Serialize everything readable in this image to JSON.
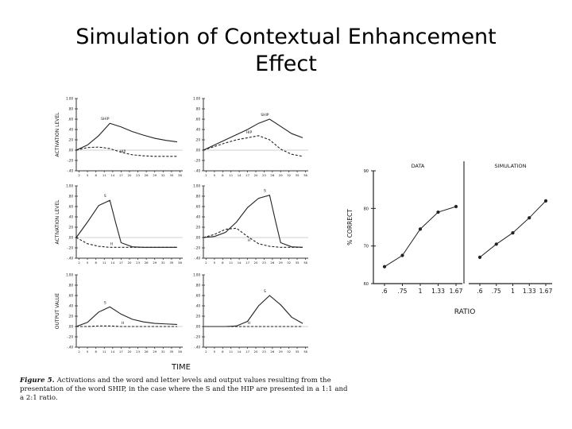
{
  "slide": {
    "title_line1": "Simulation of Contextual Enhancement",
    "title_line2": "Effect"
  },
  "figure": {
    "caption_label": "Figure 5.",
    "caption_text": "Activations and the word and letter levels and output values resulting from the presentation of the word SHIP, in the case where the S and the HIP are presented in a 1:1 and a 2:1 ratio."
  },
  "chart_data": [
    {
      "type": "line",
      "panel": "row1-left",
      "ylabel": "ACTIVATION LEVEL",
      "xlabel": "",
      "ylim": [
        -0.4,
        1.0
      ],
      "y_ticks": [
        "1.00",
        ".80",
        ".60",
        ".40",
        ".20",
        ".00",
        "-.20",
        "-.40"
      ],
      "x_ticks": [
        "2",
        "5",
        "8",
        "11",
        "14",
        "17",
        "20",
        "23",
        "26",
        "29",
        "32",
        "35",
        "38"
      ],
      "x": [
        1,
        5,
        9,
        13,
        17,
        21,
        25,
        29,
        33,
        37
      ],
      "series": [
        {
          "name": "SHIP",
          "values": [
            0.0,
            0.1,
            0.28,
            0.52,
            0.45,
            0.36,
            0.29,
            0.23,
            0.19,
            0.16
          ]
        },
        {
          "name": "HIP",
          "values": [
            0.0,
            0.05,
            0.06,
            0.03,
            -0.04,
            -0.09,
            -0.11,
            -0.12,
            -0.12,
            -0.12
          ]
        }
      ]
    },
    {
      "type": "line",
      "panel": "row1-right",
      "ylabel": "",
      "xlabel": "",
      "ylim": [
        -0.4,
        1.0
      ],
      "y_ticks": [
        "1.00",
        ".80",
        ".60",
        ".40",
        ".20",
        ".00",
        "-.20",
        "-.40"
      ],
      "x_ticks": [
        "2",
        "5",
        "8",
        "11",
        "14",
        "17",
        "20",
        "23",
        "26",
        "29",
        "32",
        "35",
        "38"
      ],
      "x": [
        1,
        5,
        9,
        13,
        17,
        21,
        25,
        29,
        33,
        37
      ],
      "series": [
        {
          "name": "SHIP",
          "values": [
            0.0,
            0.1,
            0.2,
            0.3,
            0.4,
            0.52,
            0.6,
            0.46,
            0.32,
            0.24
          ]
        },
        {
          "name": "HIP",
          "values": [
            0.0,
            0.07,
            0.14,
            0.2,
            0.24,
            0.28,
            0.2,
            0.02,
            -0.08,
            -0.12
          ]
        }
      ]
    },
    {
      "type": "line",
      "panel": "row2-left",
      "ylabel": "ACTIVATION LEVEL",
      "xlabel": "",
      "ylim": [
        -0.4,
        1.0
      ],
      "y_ticks": [
        "1.00",
        ".80",
        ".60",
        ".40",
        ".20",
        ".00",
        "-.20",
        "-.40"
      ],
      "x_ticks": [
        "2",
        "5",
        "8",
        "11",
        "14",
        "17",
        "20",
        "23",
        "26",
        "29",
        "32",
        "35",
        "38"
      ],
      "x": [
        1,
        5,
        9,
        13,
        15,
        17,
        21,
        25,
        29,
        37
      ],
      "series": [
        {
          "name": "S",
          "values": [
            0.0,
            0.3,
            0.62,
            0.72,
            0.3,
            -0.1,
            -0.18,
            -0.19,
            -0.19,
            -0.19
          ]
        },
        {
          "name": "H",
          "values": [
            0.0,
            -0.12,
            -0.17,
            -0.19,
            -0.19,
            -0.19,
            -0.19,
            -0.19,
            -0.19,
            -0.19
          ]
        }
      ]
    },
    {
      "type": "line",
      "panel": "row2-right",
      "ylabel": "",
      "xlabel": "",
      "ylim": [
        -0.4,
        1.0
      ],
      "y_ticks": [
        "1.00",
        ".80",
        ".60",
        ".40",
        ".20",
        ".00",
        "-.20",
        "-.40"
      ],
      "x_ticks": [
        "2",
        "5",
        "8",
        "11",
        "14",
        "17",
        "20",
        "23",
        "26",
        "29",
        "32",
        "35",
        "38"
      ],
      "x": [
        1,
        5,
        9,
        13,
        17,
        21,
        25,
        27,
        29,
        33,
        37
      ],
      "series": [
        {
          "name": "S",
          "values": [
            0.0,
            0.02,
            0.1,
            0.3,
            0.58,
            0.76,
            0.82,
            0.35,
            -0.1,
            -0.18,
            -0.19
          ]
        },
        {
          "name": "H",
          "values": [
            0.0,
            0.06,
            0.16,
            0.18,
            0.02,
            -0.12,
            -0.17,
            -0.18,
            -0.19,
            -0.19,
            -0.19
          ]
        }
      ]
    },
    {
      "type": "line",
      "panel": "row3-left",
      "ylabel": "OUTPUT VALUE",
      "xlabel": "TIME",
      "ylim": [
        -0.4,
        1.0
      ],
      "y_ticks": [
        "1.00",
        ".80",
        ".60",
        ".40",
        ".20",
        ".00",
        "-.20",
        "-.40"
      ],
      "x_ticks": [
        "2",
        "5",
        "8",
        "11",
        "14",
        "17",
        "20",
        "23",
        "26",
        "29",
        "32",
        "35",
        "38"
      ],
      "x": [
        1,
        5,
        9,
        13,
        17,
        21,
        25,
        29,
        33,
        37
      ],
      "series": [
        {
          "name": "S",
          "values": [
            0.0,
            0.08,
            0.28,
            0.38,
            0.24,
            0.14,
            0.09,
            0.06,
            0.05,
            0.04
          ]
        },
        {
          "name": "H",
          "values": [
            0.0,
            0.0,
            0.01,
            0.01,
            0.0,
            0.0,
            0.0,
            0.0,
            0.0,
            0.0
          ]
        }
      ]
    },
    {
      "type": "line",
      "panel": "row3-right",
      "ylabel": "",
      "xlabel": "TIME",
      "ylim": [
        -0.4,
        1.0
      ],
      "y_ticks": [
        "1.00",
        ".80",
        ".60",
        ".40",
        ".20",
        ".00",
        "-.20",
        "-.40"
      ],
      "x_ticks": [
        "2",
        "5",
        "8",
        "11",
        "14",
        "17",
        "20",
        "23",
        "26",
        "29",
        "32",
        "35",
        "38"
      ],
      "x": [
        1,
        5,
        9,
        13,
        17,
        21,
        25,
        29,
        33,
        37
      ],
      "series": [
        {
          "name": "S",
          "values": [
            0.0,
            0.0,
            0.0,
            0.01,
            0.1,
            0.4,
            0.6,
            0.42,
            0.18,
            0.06
          ]
        },
        {
          "name": "H",
          "values": [
            0.0,
            0.0,
            0.0,
            0.0,
            0.0,
            0.0,
            0.0,
            0.0,
            0.0,
            0.0
          ]
        }
      ]
    },
    {
      "type": "line",
      "panel": "data",
      "title": "DATA",
      "ylabel": "% CORRECT",
      "xlabel": "RATIO",
      "ylim": [
        60,
        90
      ],
      "y_ticks": [
        "90",
        "80",
        "70",
        "60"
      ],
      "x_ticks": [
        ".6",
        ".75",
        "1",
        "1.33",
        "1.67"
      ],
      "x": [
        0.6,
        0.75,
        1,
        1.33,
        1.67
      ],
      "series": [
        {
          "name": "",
          "values": [
            64.5,
            67.5,
            74.5,
            79,
            80.5
          ]
        }
      ]
    },
    {
      "type": "line",
      "panel": "simulation",
      "title": "SIMULATION",
      "ylabel": "",
      "xlabel": "RATIO",
      "ylim": [
        60,
        90
      ],
      "y_ticks": [],
      "x_ticks": [
        ".6",
        ".75",
        "1",
        "1.33",
        "1.67"
      ],
      "x": [
        0.6,
        0.75,
        1,
        1.33,
        1.67
      ],
      "series": [
        {
          "name": "",
          "values": [
            67,
            70.5,
            73.5,
            77.5,
            82
          ]
        }
      ]
    }
  ]
}
